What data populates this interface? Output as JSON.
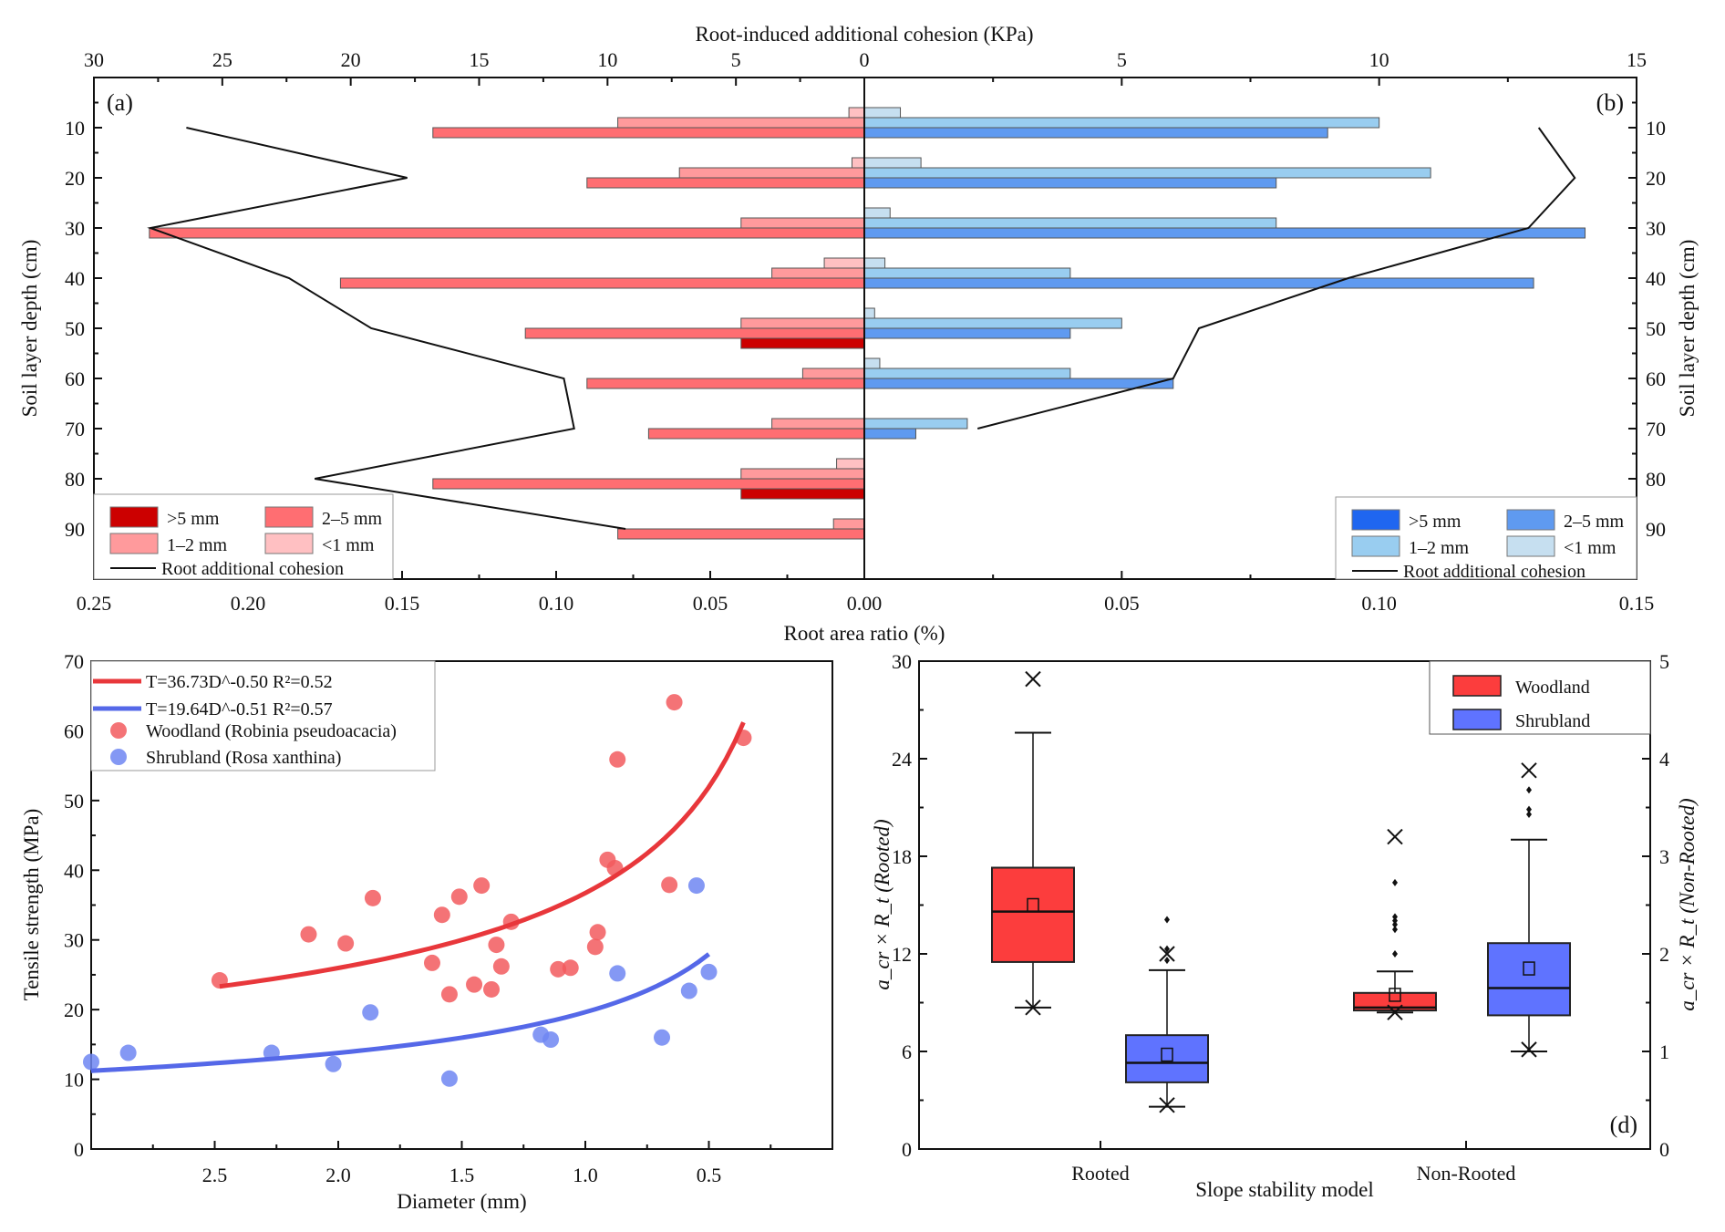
{
  "figure": {
    "chart_data": [
      {
        "id": "a",
        "type": "bar",
        "orientation": "horizontal",
        "panel_label": "(a)",
        "xlabel": "Root area ratio (%)",
        "x2label": "Root-induced additional cohesion (KPa)",
        "ylabel": "Soil layer depth (cm)",
        "xlim": [
          0.25,
          0.0
        ],
        "x2lim": [
          30,
          0
        ],
        "ylim": [
          0,
          100
        ],
        "xticks": [
          "0.25",
          "0.20",
          "0.15",
          "0.10",
          "0.05",
          "0.00"
        ],
        "x2ticks": [
          "30",
          "25",
          "20",
          "15",
          "10",
          "5",
          "0"
        ],
        "yticks": [
          "10",
          "20",
          "30",
          "40",
          "50",
          "60",
          "70",
          "80",
          "90"
        ],
        "categories": [
          10,
          20,
          30,
          40,
          50,
          60,
          70,
          80,
          90
        ],
        "series": [
          {
            "name": "<1 mm",
            "color": "#ffc0c2",
            "values": [
              0.005,
              0.004,
              0,
              0.013,
              0,
              0,
              0,
              0.009,
              0
            ]
          },
          {
            "name": "1–2 mm",
            "color": "#ff9a9c",
            "values": [
              0.08,
              0.06,
              0.04,
              0.03,
              0.04,
              0.02,
              0.03,
              0.04,
              0.01
            ]
          },
          {
            "name": "2–5 mm",
            "color": "#ff6e72",
            "values": [
              0.14,
              0.09,
              0.232,
              0.17,
              0.11,
              0.09,
              0.07,
              0.14,
              0.08
            ]
          },
          {
            "name": ">5 mm",
            "color": "#cc0000",
            "values": [
              0,
              0,
              0,
              0,
              0.04,
              0,
              0,
              0.04,
              0
            ]
          }
        ],
        "line": {
          "name": "Root additional cohesion",
          "depths": [
            10,
            20,
            30,
            40,
            50,
            60,
            70,
            80,
            90
          ],
          "values": [
            26.4,
            17.8,
            27.8,
            22.4,
            19.2,
            11.7,
            11.3,
            21.4,
            9.3
          ]
        },
        "legend": {
          "position": "bottom-left",
          "items": [
            ">5 mm",
            "2–5 mm",
            "1–2 mm",
            "<1 mm",
            "Root additional cohesion"
          ]
        }
      },
      {
        "id": "b",
        "type": "bar",
        "orientation": "horizontal",
        "panel_label": "(b)",
        "xlabel": "Root area ratio (%)",
        "x2label": "Root-induced additional cohesion (KPa)",
        "ylabel": "Soil  layer depth (cm)",
        "xlim": [
          0.0,
          0.15
        ],
        "x2lim": [
          0,
          15
        ],
        "ylim": [
          0,
          100
        ],
        "xticks": [
          "0.00",
          "0.05",
          "0.10",
          "0.15"
        ],
        "x2ticks": [
          "5",
          "10",
          "15"
        ],
        "yticks": [
          "10",
          "20",
          "30",
          "40",
          "50",
          "60",
          "70",
          "80",
          "90"
        ],
        "categories": [
          10,
          20,
          30,
          40,
          50,
          60,
          70,
          80,
          90
        ],
        "series": [
          {
            "name": "<1 mm",
            "color": "#c6dff0",
            "values": [
              0.007,
              0.011,
              0.005,
              0.004,
              0.002,
              0.003,
              0,
              0,
              0
            ]
          },
          {
            "name": "1–2 mm",
            "color": "#99cdf0",
            "values": [
              0.1,
              0.11,
              0.08,
              0.04,
              0.05,
              0.04,
              0.02,
              0,
              0
            ]
          },
          {
            "name": "2–5 mm",
            "color": "#5f9af0",
            "values": [
              0.09,
              0.08,
              0.14,
              0.13,
              0.04,
              0.06,
              0.01,
              0,
              0
            ]
          },
          {
            "name": ">5 mm",
            "color": "#1f66f0",
            "values": [
              0,
              0,
              0,
              0,
              0,
              0,
              0,
              0,
              0
            ]
          }
        ],
        "line": {
          "name": "Root additional cohesion",
          "depths": [
            10,
            20,
            30,
            40,
            50,
            60,
            70
          ],
          "values": [
            13.1,
            13.8,
            12.9,
            9.4,
            6.5,
            6.0,
            2.2
          ]
        },
        "legend": {
          "position": "bottom-right",
          "items": [
            ">5 mm",
            "2–5 mm",
            "1–2 mm",
            "<1 mm",
            "Root additional cohesion"
          ]
        }
      },
      {
        "id": "c",
        "type": "scatter",
        "xlabel": "Diameter (mm)",
        "ylabel": "Tensile strength (MPa)",
        "xlim": [
          3.0,
          0.0
        ],
        "ylim": [
          0,
          70
        ],
        "xticks": [
          "2.5",
          "2.0",
          "1.5",
          "1.0",
          "0.5"
        ],
        "yticks": [
          "0",
          "10",
          "20",
          "30",
          "40",
          "50",
          "60",
          "70"
        ],
        "series": [
          {
            "name": "Woodland (Robinia pseudoacacia)",
            "latin": "Robinia pseudoacacia",
            "common": "Woodland",
            "color": "#f25a5e",
            "points": [
              [
                2.48,
                24.2
              ],
              [
                2.12,
                30.8
              ],
              [
                1.97,
                29.5
              ],
              [
                1.86,
                36.0
              ],
              [
                1.62,
                26.7
              ],
              [
                1.58,
                33.6
              ],
              [
                1.55,
                22.2
              ],
              [
                1.51,
                36.2
              ],
              [
                1.45,
                23.6
              ],
              [
                1.42,
                37.8
              ],
              [
                1.38,
                22.9
              ],
              [
                1.36,
                29.3
              ],
              [
                1.34,
                26.2
              ],
              [
                1.3,
                32.6
              ],
              [
                1.11,
                25.8
              ],
              [
                1.06,
                26.0
              ],
              [
                0.96,
                29.0
              ],
              [
                0.95,
                31.1
              ],
              [
                0.91,
                41.5
              ],
              [
                0.88,
                40.3
              ],
              [
                0.87,
                55.9
              ],
              [
                0.66,
                37.9
              ],
              [
                0.64,
                64.1
              ],
              [
                0.36,
                59.0
              ]
            ]
          },
          {
            "name": "Shrubland (Rosa xanthina)",
            "latin": "Rosa xanthina",
            "common": "Shrubland",
            "color": "#6f86f2",
            "points": [
              [
                3.0,
                12.5
              ],
              [
                2.85,
                13.8
              ],
              [
                2.27,
                13.8
              ],
              [
                2.02,
                12.2
              ],
              [
                1.87,
                19.6
              ],
              [
                1.55,
                10.1
              ],
              [
                1.18,
                16.4
              ],
              [
                1.14,
                15.7
              ],
              [
                0.87,
                25.2
              ],
              [
                0.69,
                16.0
              ],
              [
                0.58,
                22.7
              ],
              [
                0.55,
                37.8
              ],
              [
                0.5,
                25.4
              ]
            ]
          }
        ],
        "fits": [
          {
            "label": "T=36.73D^-0.50 R²=0.52",
            "a": 36.73,
            "b": -0.5,
            "r2": "0.52",
            "xrange": [
              2.48,
              0.36
            ],
            "color": "#e8373b"
          },
          {
            "label": "T=19.64D^-0.51 R²=0.57",
            "a": 19.64,
            "b": -0.51,
            "r2": "0.57",
            "xrange": [
              3.0,
              0.5
            ],
            "color": "#5568e8"
          }
        ],
        "legend": {
          "position": "top-left"
        }
      },
      {
        "id": "d",
        "type": "box",
        "panel_label": "(d)",
        "xlabel": "Slope stability model",
        "ylabel": "a_cr × R_t (Rooted)",
        "y2label": "a_cr × R_t (Non-Rooted)",
        "ylim": [
          0,
          30
        ],
        "y2lim": [
          0,
          5
        ],
        "yticks": [
          "0",
          "6",
          "12",
          "18",
          "24",
          "30"
        ],
        "y2ticks": [
          "0",
          "1",
          "2",
          "3",
          "4",
          "5"
        ],
        "categories": [
          "Rooted",
          "Non-Rooted"
        ],
        "legend": {
          "position": "top-right",
          "items": [
            {
              "label": "Woodland",
              "color": "#fc3d3d"
            },
            {
              "label": "Shrubland",
              "color": "#5f73ff"
            }
          ]
        },
        "boxes": [
          {
            "group": "Rooted",
            "series": "Woodland",
            "axis": "left",
            "whisker_low": 8.7,
            "q1": 11.5,
            "median": 14.6,
            "mean": 15.0,
            "q3": 17.3,
            "whisker_high": 25.6,
            "min_x": 8.7,
            "max_x": 28.9,
            "outliers": []
          },
          {
            "group": "Rooted",
            "series": "Shrubland",
            "axis": "left",
            "whisker_low": 2.6,
            "q1": 4.1,
            "median": 5.3,
            "mean": 5.8,
            "q3": 7.0,
            "whisker_high": 11.0,
            "min_x": 2.7,
            "max_x": 12.0,
            "outliers": [
              11.6,
              12.3,
              14.1
            ]
          },
          {
            "group": "Non-Rooted",
            "series": "Woodland",
            "axis": "right",
            "whisker_low": 1.4,
            "q1": 1.42,
            "median": 1.45,
            "mean": 1.58,
            "q3": 1.6,
            "whisker_high": 1.82,
            "min_x": 1.4,
            "max_x": 3.2,
            "outliers": [
              2.0,
              2.25,
              2.3,
              2.34,
              2.38,
              2.73
            ]
          },
          {
            "group": "Non-Rooted",
            "series": "Shrubland",
            "axis": "right",
            "whisker_low": 1.0,
            "q1": 1.37,
            "median": 1.65,
            "mean": 1.85,
            "q3": 2.11,
            "whisker_high": 3.17,
            "min_x": 1.02,
            "max_x": 3.88,
            "outliers": [
              3.43,
              3.48,
              3.68
            ]
          }
        ]
      }
    ]
  }
}
